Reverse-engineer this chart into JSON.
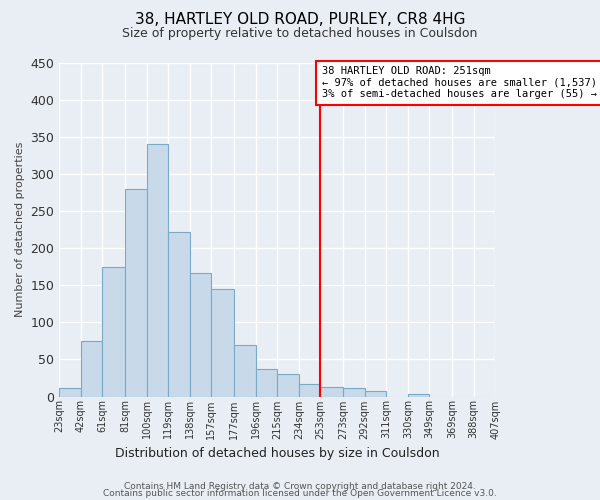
{
  "title": "38, HARTLEY OLD ROAD, PURLEY, CR8 4HG",
  "subtitle": "Size of property relative to detached houses in Coulsdon",
  "xlabel": "Distribution of detached houses by size in Coulsdon",
  "ylabel": "Number of detached properties",
  "bar_color": "#c8d9ea",
  "bar_edge_color": "#7aaac8",
  "bin_edges": [
    23,
    42,
    61,
    81,
    100,
    119,
    138,
    157,
    177,
    196,
    215,
    234,
    253,
    273,
    292,
    311,
    330,
    349,
    369,
    388,
    407
  ],
  "bin_labels": [
    "23sqm",
    "42sqm",
    "61sqm",
    "81sqm",
    "100sqm",
    "119sqm",
    "138sqm",
    "157sqm",
    "177sqm",
    "196sqm",
    "215sqm",
    "234sqm",
    "253sqm",
    "273sqm",
    "292sqm",
    "311sqm",
    "330sqm",
    "349sqm",
    "369sqm",
    "388sqm",
    "407sqm"
  ],
  "bar_heights": [
    12,
    75,
    175,
    280,
    340,
    222,
    167,
    145,
    70,
    37,
    30,
    17,
    13,
    12,
    7,
    0,
    3,
    0,
    0,
    0
  ],
  "ylim": [
    0,
    450
  ],
  "yticks": [
    0,
    50,
    100,
    150,
    200,
    250,
    300,
    350,
    400,
    450
  ],
  "vline_x": 253,
  "vline_color": "red",
  "annotation_title": "38 HARTLEY OLD ROAD: 251sqm",
  "annotation_line1": "← 97% of detached houses are smaller (1,537)",
  "annotation_line2": "3% of semi-detached houses are larger (55) →",
  "annotation_box_facecolor": "#ffffff",
  "annotation_box_edgecolor": "red",
  "footer1": "Contains HM Land Registry data © Crown copyright and database right 2024.",
  "footer2": "Contains public sector information licensed under the Open Government Licence v3.0.",
  "bg_color": "#e8eef4",
  "grid_color": "#ffffff",
  "grid_linewidth": 1.0,
  "title_fontsize": 11,
  "subtitle_fontsize": 9,
  "ylabel_fontsize": 8,
  "xlabel_fontsize": 9,
  "ytick_fontsize": 9,
  "xtick_fontsize": 7,
  "footer_fontsize": 6.5
}
